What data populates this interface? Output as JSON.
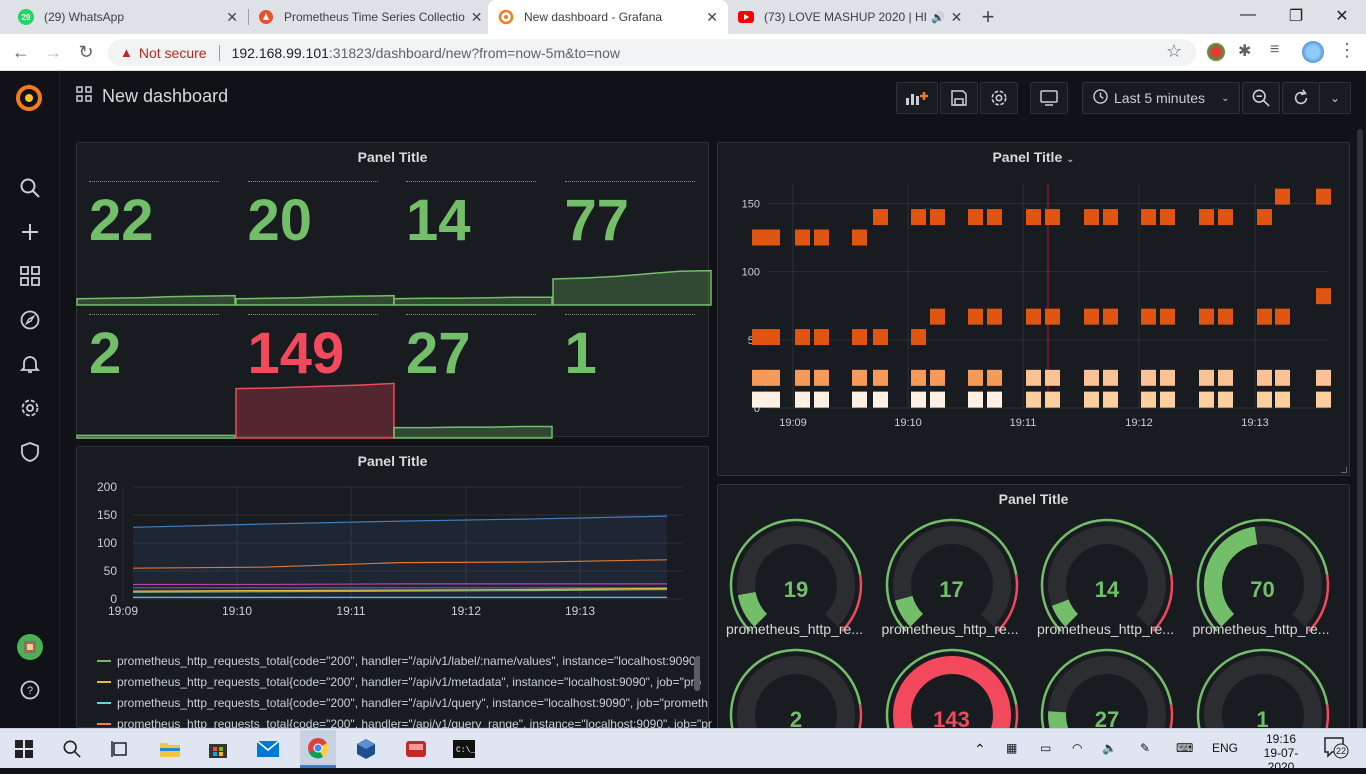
{
  "browser": {
    "tabs": [
      {
        "title": "(29) WhatsApp",
        "badge": "29"
      },
      {
        "title": "Prometheus Time Series Collectio"
      },
      {
        "title": "New dashboard - Grafana"
      },
      {
        "title": "(73) LOVE MASHUP 2020 | HI"
      }
    ],
    "security_label": "Not secure",
    "url_host": "192.168.99.101",
    "url_path": ":31823/dashboard/new?from=now-5m&to=now"
  },
  "grafana": {
    "dashboard_title": "New dashboard",
    "time_picker_label": "Last 5 minutes",
    "colors": {
      "green": "#73bf69",
      "red": "#f2495c",
      "orange": "#e0752d"
    }
  },
  "panel_stat": {
    "title": "Panel Title",
    "values": [
      "22",
      "20",
      "14",
      "77",
      "2",
      "149",
      "27",
      "1"
    ],
    "colors": [
      "green",
      "green",
      "green",
      "green",
      "green",
      "red",
      "green",
      "green"
    ]
  },
  "panel_heatmap": {
    "title": "Panel Title",
    "y_ticks": [
      "150",
      "100",
      "50",
      "0"
    ],
    "x_ticks": [
      "19:09",
      "19:10",
      "19:11",
      "19:12",
      "19:13"
    ]
  },
  "panel_graph": {
    "title": "Panel Title",
    "legend": [
      "prometheus_http_requests_total{code=\"200\", handler=\"/api/v1/label/:name/values\", instance=\"localhost:9090\"",
      "prometheus_http_requests_total{code=\"200\", handler=\"/api/v1/metadata\", instance=\"localhost:9090\", job=\"pro",
      "prometheus_http_requests_total{code=\"200\", handler=\"/api/v1/query\", instance=\"localhost:9090\", job=\"prometh",
      "prometheus_http_requests_total{code=\"200\", handler=\"/api/v1/query_range\", instance=\"localhost:9090\", job=\"pr"
    ],
    "legend_colors": [
      "#7eb26d",
      "#eab839",
      "#6ed0e0",
      "#ef843c"
    ]
  },
  "panel_gauge": {
    "title": "Panel Title",
    "gauges": [
      {
        "value": "19",
        "name": "prometheus_http_re...",
        "fraction": 0.13
      },
      {
        "value": "17",
        "name": "prometheus_http_re...",
        "fraction": 0.11
      },
      {
        "value": "14",
        "name": "prometheus_http_re...",
        "fraction": 0.09
      },
      {
        "value": "70",
        "name": "prometheus_http_re...",
        "fraction": 0.47
      },
      {
        "value": "2",
        "name": "",
        "fraction": 0.01
      },
      {
        "value": "143",
        "name": "",
        "fraction": 0.95
      },
      {
        "value": "27",
        "name": "",
        "fraction": 0.18
      },
      {
        "value": "1",
        "name": "",
        "fraction": 0.01
      }
    ]
  },
  "chart_data": [
    {
      "type": "heatmap",
      "title": "Panel Title",
      "x_ticks": [
        "19:09",
        "19:10",
        "19:11",
        "19:12",
        "19:13"
      ],
      "y_ticks": [
        "0",
        "50",
        "100",
        "150"
      ],
      "ylim": [
        0,
        165
      ]
    },
    {
      "type": "line",
      "title": "Panel Title",
      "x": [
        "19:09",
        "19:10",
        "19:11",
        "19:12",
        "19:13"
      ],
      "ylim": [
        0,
        200
      ],
      "y_ticks": [
        "200",
        "150",
        "100",
        "50",
        "0"
      ],
      "series": [
        {
          "values": [
            128,
            134,
            139,
            143,
            148
          ]
        },
        {
          "values": [
            55,
            57,
            65,
            66,
            70
          ]
        },
        {
          "values": [
            26,
            26,
            27,
            27,
            27
          ]
        },
        {
          "values": [
            20,
            20,
            20,
            20,
            20
          ]
        },
        {
          "values": [
            14,
            15,
            16,
            17,
            19
          ]
        },
        {
          "values": [
            12,
            13,
            14,
            15,
            17
          ]
        },
        {
          "values": [
            3,
            3,
            3,
            3,
            3
          ]
        }
      ]
    }
  ],
  "taskbar": {
    "lang": "ENG",
    "time": "19:16",
    "date": "19-07-2020",
    "notif_count": "22"
  }
}
